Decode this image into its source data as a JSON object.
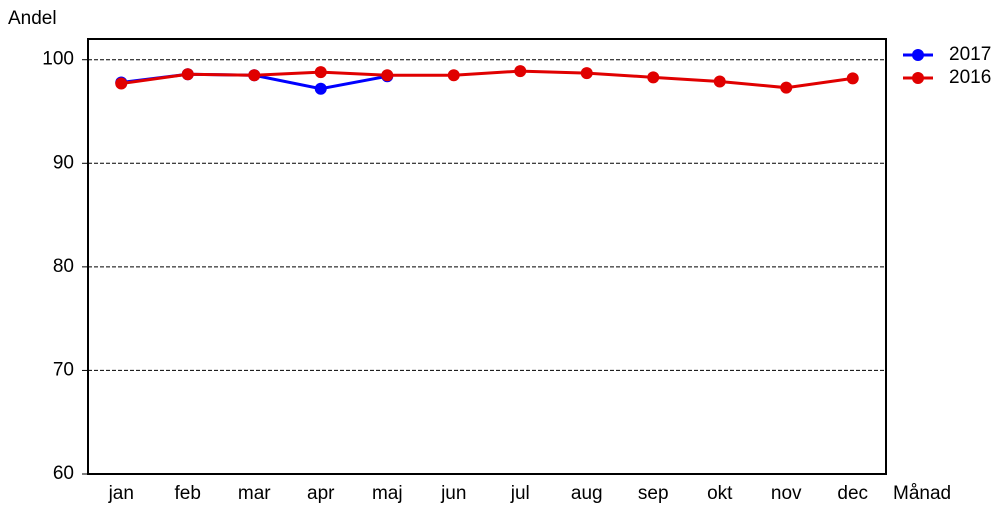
{
  "chart_data": {
    "type": "line",
    "y_label": "Andel",
    "x_label": "Månad",
    "categories": [
      "jan",
      "feb",
      "mar",
      "apr",
      "maj",
      "jun",
      "jul",
      "aug",
      "sep",
      "okt",
      "nov",
      "dec"
    ],
    "series": [
      {
        "name": "2017",
        "color": "#0000ff",
        "values": [
          97.8,
          98.6,
          98.5,
          97.2,
          98.4,
          null,
          null,
          null,
          null,
          null,
          null,
          null
        ]
      },
      {
        "name": "2016",
        "color": "#e00000",
        "values": [
          97.7,
          98.6,
          98.5,
          98.8,
          98.5,
          98.5,
          98.9,
          98.7,
          98.3,
          97.9,
          97.3,
          98.2
        ]
      }
    ],
    "ylim": [
      60,
      102
    ],
    "yticks": [
      60,
      70,
      80,
      90,
      100
    ],
    "grid": true,
    "legend": "right"
  }
}
